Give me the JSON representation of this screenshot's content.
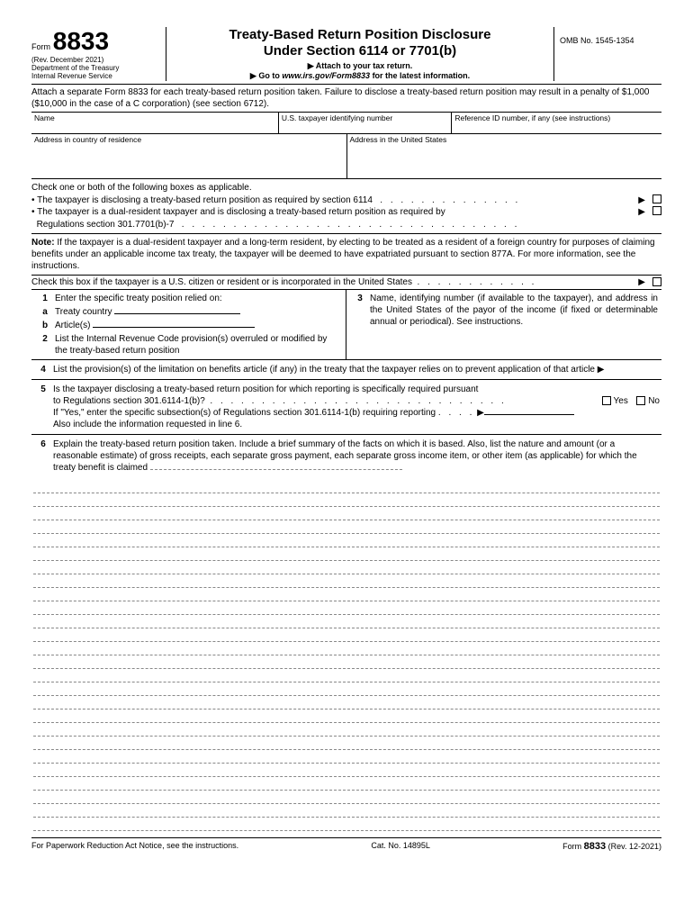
{
  "header": {
    "form_label": "Form",
    "form_number": "8833",
    "rev_date": "(Rev. December 2021)",
    "department": "Department of the Treasury",
    "irs": "Internal Revenue Service",
    "title_line1": "Treaty-Based Return Position Disclosure",
    "title_line2": "Under Section 6114 or 7701(b)",
    "attach": "Attach to your tax return.",
    "goto_prefix": "Go to ",
    "goto_url": "www.irs.gov/Form8833",
    "goto_suffix": " for the latest information.",
    "omb": "OMB No. 1545-1354"
  },
  "instruction": "Attach a separate Form 8833 for each treaty-based return position taken. Failure to disclose a treaty-based return position may result in a penalty of $1,000 ($10,000 in the case of a C corporation) (see section 6712).",
  "info": {
    "name_label": "Name",
    "tin_label": "U.S. taxpayer identifying number",
    "ref_label": "Reference ID number, if any (see instructions)",
    "addr_residence": "Address in country of residence",
    "addr_us": "Address in the United States"
  },
  "check": {
    "intro": "Check one or both of the following boxes as applicable.",
    "bullet1": "The taxpayer is disclosing a treaty-based return position as required by section 6114",
    "bullet2a": "The taxpayer is a dual-resident taxpayer and is disclosing a treaty-based return position as required by",
    "bullet2b": "Regulations section 301.7701(b)-7"
  },
  "note": {
    "label": "Note:",
    "text": " If the taxpayer is a dual-resident taxpayer and a long-term resident, by electing to be treated as a resident of a foreign country for purposes of claiming benefits under an applicable income tax treaty, the taxpayer will be deemed to have expatriated pursuant to section 877A. For more information, see the instructions."
  },
  "citizen": "Check this box if the taxpayer is a U.S. citizen or resident or is incorporated in the United States",
  "items": {
    "n1": "Enter the specific treaty position relied on:",
    "n1a": "Treaty country",
    "n1b": "Article(s)",
    "n2": "List the Internal Revenue Code provision(s) overruled or modified by the treaty-based return position",
    "n3": "Name, identifying number (if available to the taxpayer), and address in the United States of the payor of the income (if fixed or determinable annual or periodical). See instructions.",
    "n4": "List the provision(s) of the limitation on benefits article (if any) in the treaty that the taxpayer relies on to prevent application of that article",
    "n5a": "Is the taxpayer disclosing a treaty-based return position for which reporting is specifically required pursuant",
    "n5b": "to Regulations section 301.6114-1(b)?",
    "n5c": "If \"Yes,\" enter the specific subsection(s) of Regulations section 301.6114-1(b) requiring reporting",
    "n5d": "Also include the information requested in line 6.",
    "yes": "Yes",
    "no": "No",
    "n6": "Explain the treaty-based return position taken. Include a brief summary of the facts on which it is based. Also, list the nature and amount (or a reasonable estimate) of gross receipts, each separate gross payment, each separate gross income item, or other item (as applicable) for which the treaty benefit is claimed"
  },
  "footer": {
    "paperwork": "For Paperwork Reduction Act Notice, see the instructions.",
    "catno": "Cat. No. 14895L",
    "form_label": "Form",
    "form_number": "8833",
    "rev": "(Rev. 12-2021)"
  },
  "dashed_line_count": 26
}
